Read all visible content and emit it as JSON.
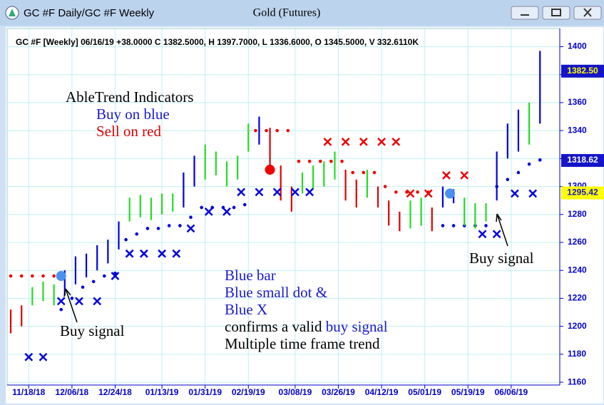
{
  "window": {
    "title": "GC #F Daily/GC #F Weekly",
    "chart_title": "Gold (Futures)"
  },
  "chart_data": {
    "type": "ohlc",
    "header": "GC #F [Weekly] 06/16/19 +38.0000 C 1382.5000, H 1397.7000, L 1336.6000, O 1345.5000, V 332.6110K",
    "xlim": [
      -1,
      152.5
    ],
    "ylim": [
      1158,
      1413
    ],
    "xticks": [
      {
        "value": 5,
        "label": "11/18/18"
      },
      {
        "value": 17,
        "label": "12/06/18"
      },
      {
        "value": 29,
        "label": "12/24/18"
      },
      {
        "value": 42,
        "label": "01/13/19"
      },
      {
        "value": 54,
        "label": "01/31/19"
      },
      {
        "value": 66,
        "label": "02/19/19"
      },
      {
        "value": 79,
        "label": "03/08/19"
      },
      {
        "value": 91,
        "label": "03/26/19"
      },
      {
        "value": 103,
        "label": "04/12/19"
      },
      {
        "value": 115,
        "label": "05/01/19"
      },
      {
        "value": 127,
        "label": "05/19/19"
      },
      {
        "value": 139,
        "label": "06/06/19"
      }
    ],
    "yticks": [
      1160,
      1180,
      1200,
      1220,
      1240,
      1260,
      1280,
      1300,
      1320,
      1340,
      1360,
      1380,
      1400
    ],
    "grid": true,
    "bars": [
      {
        "color": "#e00000",
        "x": [
          0,
          3,
          72,
          75,
          78,
          93,
          96,
          102,
          105,
          108,
          117
        ],
        "low": [
          1195,
          1200,
          1310,
          1290,
          1282,
          1290,
          1285,
          1285,
          1272,
          1268,
          1268
        ],
        "high": [
          1212,
          1215,
          1342,
          1315,
          1300,
          1312,
          1305,
          1300,
          1290,
          1282,
          1285
        ]
      },
      {
        "color": "#22dd22",
        "x": [
          6,
          9,
          12,
          33,
          36,
          39,
          42,
          45,
          54,
          57,
          60,
          63,
          66,
          81,
          84,
          87,
          90,
          99,
          111,
          114,
          126,
          129,
          132,
          144
        ],
        "low": [
          1215,
          1218,
          1215,
          1275,
          1278,
          1276,
          1280,
          1282,
          1305,
          1308,
          1300,
          1305,
          1325,
          1295,
          1298,
          1300,
          1305,
          1292,
          1270,
          1272,
          1272,
          1270,
          1275,
          1330
        ],
        "high": [
          1228,
          1232,
          1230,
          1292,
          1294,
          1292,
          1295,
          1295,
          1330,
          1325,
          1318,
          1322,
          1345,
          1310,
          1315,
          1318,
          1325,
          1312,
          1290,
          1292,
          1292,
          1288,
          1288,
          1360
        ]
      },
      {
        "color": "#0000dd",
        "x": [
          15,
          18,
          21,
          24,
          27,
          30,
          48,
          51,
          69,
          120,
          123,
          135,
          138,
          141,
          147
        ],
        "low": [
          1222,
          1230,
          1235,
          1240,
          1245,
          1255,
          1285,
          1300,
          1330,
          1285,
          1288,
          1290,
          1320,
          1325,
          1345
        ],
        "high": [
          1240,
          1250,
          1252,
          1258,
          1262,
          1275,
          1310,
          1322,
          1350,
          1300,
          1298,
          1325,
          1345,
          1355,
          1397
        ]
      }
    ],
    "dots": [
      {
        "color": "#ee0000",
        "x": [
          0,
          3,
          6,
          9,
          12,
          68,
          71,
          74,
          77,
          80,
          83,
          86,
          89,
          92,
          95,
          98,
          101,
          104,
          107,
          110,
          113,
          116
        ],
        "values": [
          1236,
          1236,
          1236,
          1236,
          1236,
          1340,
          1340,
          1340,
          1340,
          1318,
          1318,
          1318,
          1318,
          1318,
          1310,
          1310,
          1310,
          1300,
          1296,
          1296,
          1296,
          1296
        ]
      },
      {
        "color": "#0000dd",
        "x": [
          14,
          17,
          20,
          23,
          26,
          29,
          32,
          35,
          38,
          41,
          44,
          47,
          50,
          53,
          56,
          59,
          62,
          65,
          120,
          123,
          126,
          129,
          132,
          135,
          138,
          141,
          144,
          147
        ],
        "values": [
          1212,
          1220,
          1228,
          1232,
          1236,
          1238,
          1262,
          1266,
          1270,
          1270,
          1272,
          1272,
          1278,
          1285,
          1285,
          1285,
          1285,
          1287,
          1272,
          1272,
          1272,
          1272,
          1272,
          1300,
          1305,
          1310,
          1316,
          1319
        ]
      }
    ],
    "crosses": [
      {
        "color": "#0000dd",
        "x": [
          5,
          9,
          14,
          19,
          24,
          29,
          33,
          37,
          42,
          46,
          50,
          55,
          60,
          64,
          69,
          74,
          79,
          83,
          131,
          135,
          140,
          145
        ],
        "values": [
          1178,
          1178,
          1218,
          1218,
          1218,
          1236,
          1252,
          1252,
          1252,
          1252,
          1270,
          1282,
          1282,
          1296,
          1296,
          1296,
          1296,
          1296,
          1266,
          1266,
          1295,
          1295
        ]
      },
      {
        "color": "#ee0000",
        "x": [
          88,
          93,
          98,
          103,
          107,
          111,
          116,
          121,
          126
        ],
        "values": [
          1332,
          1332,
          1332,
          1332,
          1332,
          1295,
          1295,
          1308,
          1308
        ]
      }
    ],
    "signals": [
      {
        "color": "#4a90ee",
        "x": [
          14,
          122
        ],
        "values": [
          1236,
          1295
        ]
      },
      {
        "color": "#ee0000",
        "x": [
          72
        ],
        "values": [
          1312
        ]
      }
    ],
    "price_labels": [
      {
        "value": 1382.5,
        "label": "1382.50",
        "color": "#1414c8",
        "text_color": "#ffff00"
      },
      {
        "value": 1318.62,
        "label": "1318.62",
        "color": "#1414c8",
        "text_color": "#ffffff"
      },
      {
        "value": 1295.42,
        "label": "1295.42",
        "color": "#ffff00",
        "text_color": "#1414c8"
      }
    ],
    "annotations": {
      "heading": "AbleTrend Indicators",
      "buy": "Buy on blue",
      "sell": "Sell on red",
      "buy_signal_left": "Buy signal",
      "buy_signal_right": "Buy signal",
      "blue_bar": "Blue bar",
      "blue_dot": "Blue small dot &",
      "blue_x": "Blue X",
      "confirms": "confirms a valid",
      "confirms_signal": "buy signal",
      "multi": "Multiple time frame trend"
    }
  }
}
